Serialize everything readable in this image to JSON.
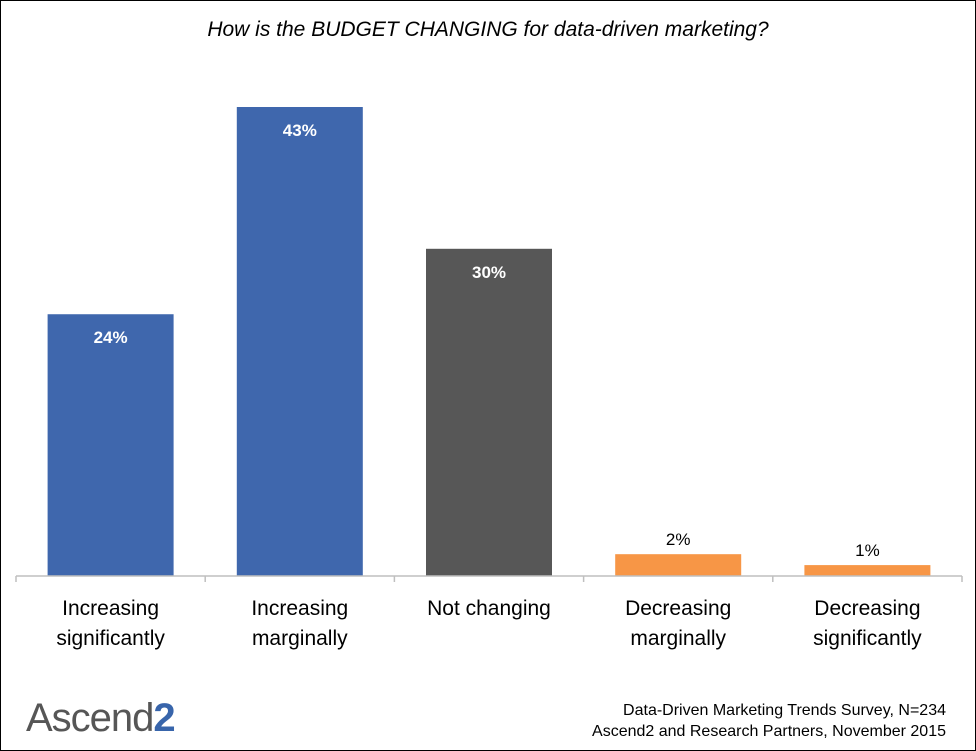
{
  "chart_data": {
    "type": "bar",
    "title": "How is the BUDGET CHANGING for data-driven marketing?",
    "categories": [
      [
        "Increasing",
        "significantly"
      ],
      [
        "Increasing",
        "marginally"
      ],
      [
        "Not changing"
      ],
      [
        "Decreasing",
        "marginally"
      ],
      [
        "Decreasing",
        "significantly"
      ]
    ],
    "values": [
      24,
      43,
      30,
      2,
      1
    ],
    "value_labels": [
      "24%",
      "43%",
      "30%",
      "2%",
      "1%"
    ],
    "colors": [
      "#3f67ad",
      "#3f67ad",
      "#575757",
      "#f79646",
      "#f79646"
    ],
    "ylim": [
      0,
      43
    ],
    "grid": false,
    "legend": "none"
  },
  "branding": {
    "logo_main": "Ascend",
    "logo_accent": "2",
    "logo_accent_color": "#3865ab"
  },
  "source": {
    "line1": "Data-Driven Marketing Trends Survey, N=234",
    "line2": "Ascend2 and Research Partners, November 2015"
  }
}
